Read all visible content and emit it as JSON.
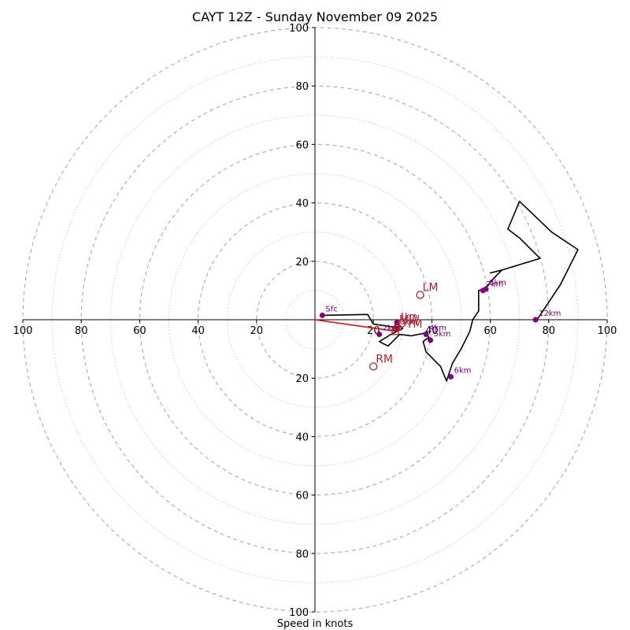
{
  "chart_data": {
    "type": "hodograph",
    "title": "CAYT 12Z - Sunday November 09 2025",
    "xlabel": "Speed in knots",
    "max_speed": 100,
    "ring_step": 10,
    "x_ticks": [
      {
        "value": -100,
        "label": "100"
      },
      {
        "value": -80,
        "label": "80"
      },
      {
        "value": -60,
        "label": "60"
      },
      {
        "value": -40,
        "label": "40"
      },
      {
        "value": -20,
        "label": "20"
      },
      {
        "value": 20,
        "label": "20"
      },
      {
        "value": 40,
        "label": "40"
      },
      {
        "value": 60,
        "label": "60"
      },
      {
        "value": 80,
        "label": "80"
      },
      {
        "value": 100,
        "label": "100"
      }
    ],
    "y_ticks": [
      {
        "value": 100,
        "label": "100"
      },
      {
        "value": 80,
        "label": "80"
      },
      {
        "value": 60,
        "label": "60"
      },
      {
        "value": 40,
        "label": "40"
      },
      {
        "value": 20,
        "label": "20"
      },
      {
        "value": -20,
        "label": "20"
      },
      {
        "value": -40,
        "label": "40"
      },
      {
        "value": -60,
        "label": "60"
      },
      {
        "value": -80,
        "label": "80"
      },
      {
        "value": -100,
        "label": "100"
      }
    ],
    "trace": {
      "color": "#000000",
      "points": [
        [
          2.5,
          1.5
        ],
        [
          18,
          1.8
        ],
        [
          20,
          -1.5
        ],
        [
          27,
          -2.5
        ],
        [
          28,
          -1
        ],
        [
          30,
          -3
        ],
        [
          26,
          -5
        ],
        [
          22,
          -7.5
        ],
        [
          25,
          -9
        ],
        [
          29,
          -5
        ],
        [
          33,
          -5.5
        ],
        [
          38,
          -4.5
        ],
        [
          39,
          -6
        ],
        [
          37,
          -7.5
        ],
        [
          38,
          -11
        ],
        [
          43,
          -16
        ],
        [
          45,
          -21
        ],
        [
          47,
          -15
        ],
        [
          50,
          -10
        ],
        [
          53,
          -4
        ],
        [
          54,
          0
        ],
        [
          56,
          3
        ],
        [
          56,
          10
        ],
        [
          58,
          10.5
        ],
        [
          61,
          14
        ],
        [
          64,
          17
        ],
        [
          60,
          16
        ],
        [
          64,
          17
        ],
        [
          77,
          21
        ],
        [
          70,
          28
        ],
        [
          66,
          31
        ],
        [
          70,
          40.5
        ],
        [
          81,
          30
        ],
        [
          90,
          24
        ],
        [
          84,
          12
        ],
        [
          76,
          0
        ]
      ]
    },
    "height_markers": [
      {
        "label": "Sfc",
        "u": 2.5,
        "v": 1.5
      },
      {
        "label": "1km",
        "u": 28,
        "v": -1
      },
      {
        "label": "2km",
        "u": 22,
        "v": -5
      },
      {
        "label": "3km",
        "u": 28,
        "v": -3
      },
      {
        "label": "4km",
        "u": 38,
        "v": -5
      },
      {
        "label": "5km",
        "u": 39.5,
        "v": -7
      },
      {
        "label": "6km",
        "u": 46.5,
        "v": -19.5
      },
      {
        "label": "7km",
        "u": 57.5,
        "v": 10
      },
      {
        "label": "8km",
        "u": 58.5,
        "v": 10.5
      },
      {
        "label": "12km",
        "u": 75.5,
        "v": 0
      }
    ],
    "storm_motions": [
      {
        "label": "LM",
        "u": 36,
        "v": 8.5,
        "marker": "circle"
      },
      {
        "label": "RM",
        "u": 20,
        "v": -16,
        "marker": "circle"
      },
      {
        "label": "MW",
        "u": 28,
        "v": -2.5,
        "marker": "triangle"
      },
      {
        "label": "DTM",
        "u": 27.5,
        "v": -4,
        "marker": "square"
      }
    ],
    "shear_vector": {
      "from_u": 0,
      "from_v": 0,
      "to_u": 28,
      "to_v": -4,
      "color": "#ff0000"
    },
    "colors": {
      "ring_major": "#b0b0b0",
      "ring_minor": "#c8c8c8",
      "markers": "#800080",
      "storm_motion": "#b22222"
    }
  }
}
